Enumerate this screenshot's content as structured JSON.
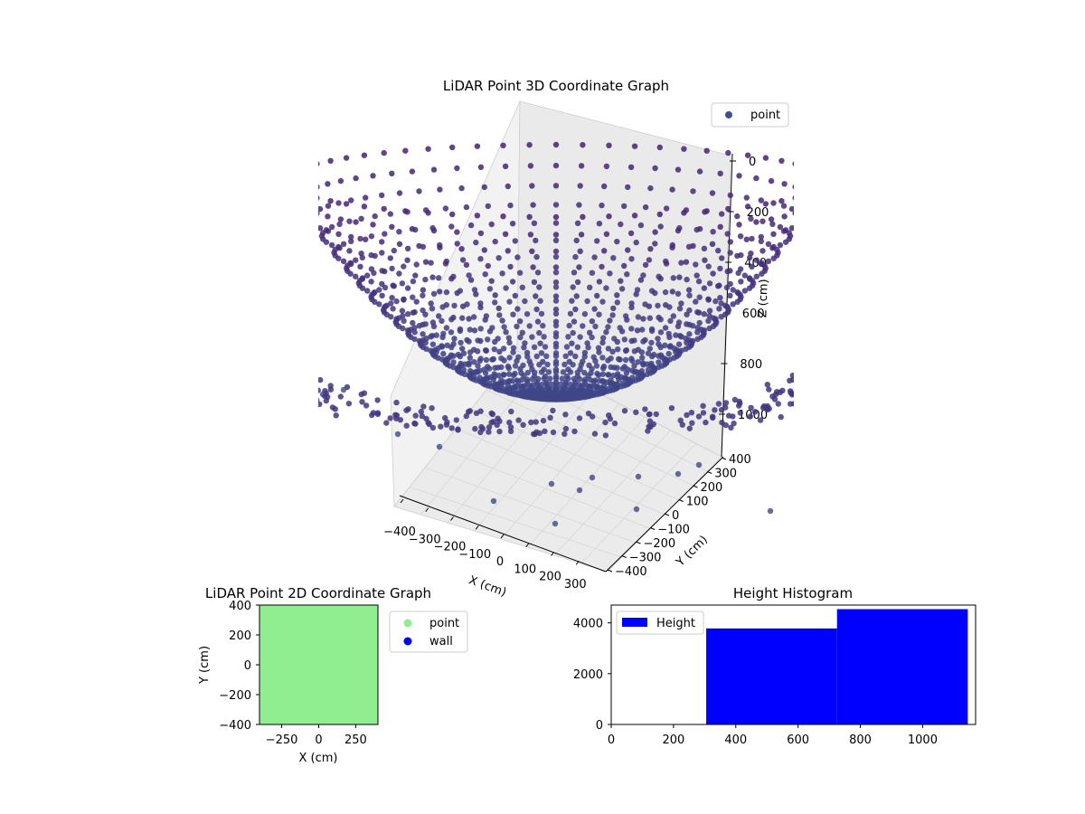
{
  "chart_data": [
    {
      "type": "scatter",
      "title": "LiDAR Point 3D Coordinate Graph",
      "xlabel": "X (cm)",
      "ylabel": "Y (cm)",
      "zlabel": "Z (cm)",
      "xlim": [
        -400,
        400
      ],
      "ylim": [
        -400,
        400
      ],
      "zlim": [
        -1000,
        0
      ],
      "xticks": [
        "−400",
        "−300",
        "−200",
        "−100",
        "0",
        "100",
        "200",
        "300"
      ],
      "yticks": [
        "−400",
        "−300",
        "−200",
        "−100",
        "0",
        "100",
        "200",
        "300",
        "400"
      ],
      "zticks": [
        "0",
        "200",
        "400",
        "600",
        "800",
        "1000"
      ],
      "legend": {
        "placement": "top-right",
        "entries": [
          {
            "label": "point",
            "color": "#3b528b"
          }
        ]
      },
      "point_color_top": "#482173",
      "point_color_bottom": "#3f4788",
      "grid": true,
      "shape": "paraboloid bowl point cloud",
      "rim_radius_cm": 400,
      "min_depth_cm": -1000,
      "max_depth_cm": 0
    },
    {
      "type": "scatter",
      "title": "LiDAR Point 2D Coordinate Graph",
      "xlabel": "X (cm)",
      "ylabel": "Y (cm)",
      "xlim": [
        -400,
        400
      ],
      "ylim": [
        -400,
        400
      ],
      "xticks": [
        "−250",
        "0",
        "250"
      ],
      "yticks": [
        "400",
        "200",
        "0",
        "−200",
        "−400"
      ],
      "legend": {
        "placement": "outside-right",
        "entries": [
          {
            "label": "point",
            "color": "#90ee90"
          },
          {
            "label": "wall",
            "color": "#0000ff"
          }
        ]
      },
      "fill_color": "#90ee90"
    },
    {
      "type": "bar",
      "title": "Height Histogram",
      "xlabel": "",
      "ylabel": "",
      "xlim": [
        0,
        1170
      ],
      "ylim": [
        0,
        4700
      ],
      "xticks": [
        "0",
        "200",
        "400",
        "600",
        "800",
        "1000"
      ],
      "yticks": [
        "0",
        "2000",
        "4000"
      ],
      "bins": [
        {
          "start": 305,
          "end": 725,
          "value": 3780
        },
        {
          "start": 725,
          "end": 1145,
          "value": 4540
        }
      ],
      "color": "#0000ff",
      "legend": {
        "placement": "top-left",
        "entries": [
          {
            "label": "Height",
            "color": "#0000ff"
          }
        ]
      }
    }
  ]
}
